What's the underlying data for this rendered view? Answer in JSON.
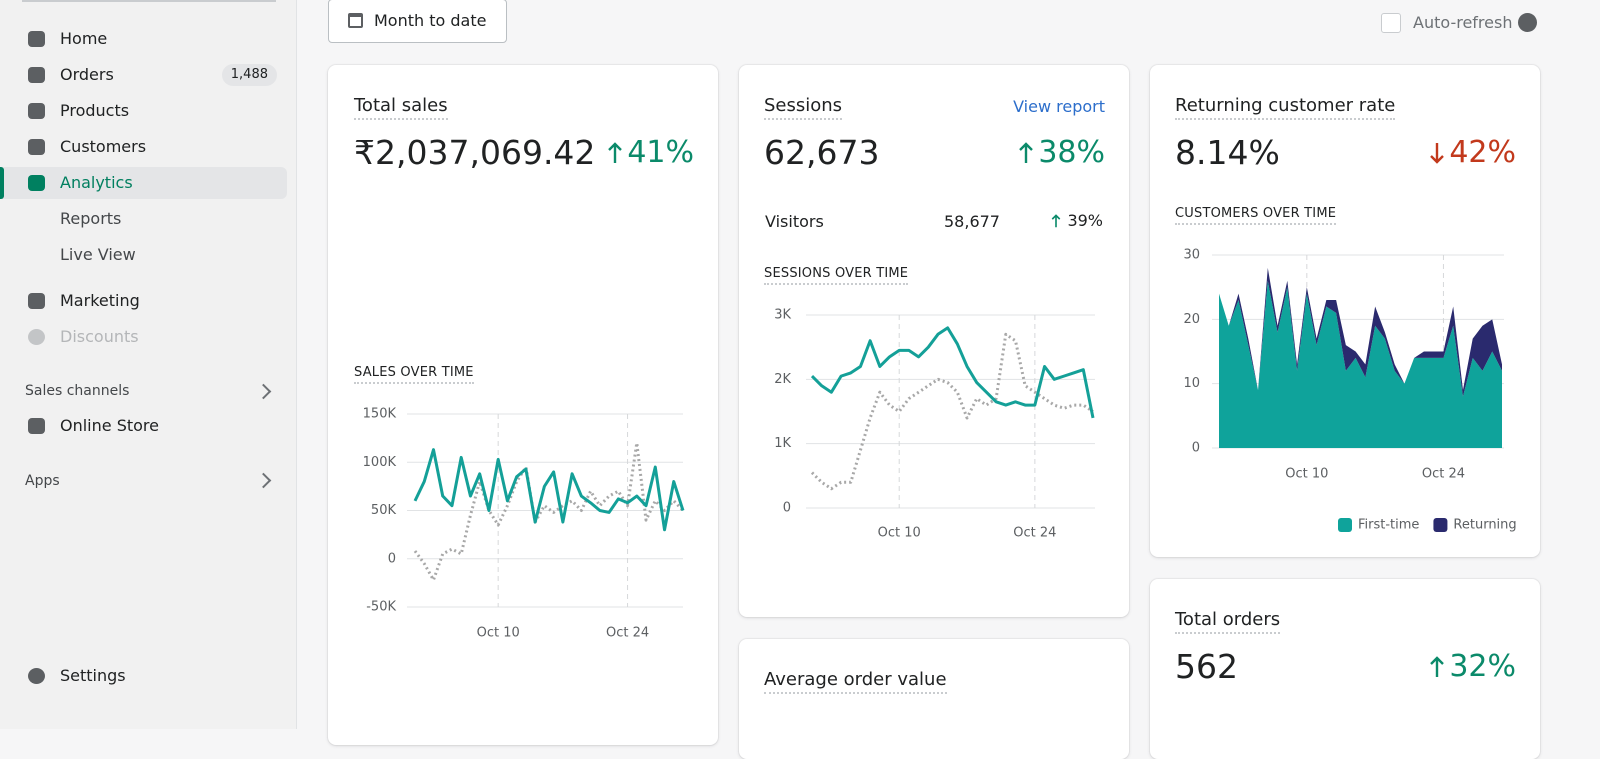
{
  "top_bar": {
    "date_range": "Month to date",
    "auto_refresh": "Auto-refresh"
  },
  "sidebar": {
    "nav": [
      {
        "label": "Home"
      },
      {
        "label": "Orders",
        "badge": "1,488"
      },
      {
        "label": "Products"
      },
      {
        "label": "Customers"
      },
      {
        "label": "Analytics",
        "active": true
      },
      {
        "label": "Reports",
        "sub": true
      },
      {
        "label": "Live View",
        "sub": true
      },
      {
        "label": "Marketing"
      },
      {
        "label": "Discounts",
        "disabled": true
      }
    ],
    "sales_channels": "Sales channels",
    "online_store": "Online Store",
    "apps": "Apps",
    "settings": "Settings"
  },
  "cards": [
    {
      "title": "Total sales",
      "value": "₹2,037,069.42",
      "change": "41%",
      "trend": "up",
      "chart": {
        "type": "line",
        "title": "SALES OVER TIME",
        "categories": [
          null,
          null,
          null,
          null,
          null,
          null,
          null,
          null,
          null,
          "Oct 10",
          null,
          null,
          null,
          null,
          null,
          null,
          null,
          null,
          null,
          null,
          null,
          null,
          null,
          "Oct 24",
          null,
          null,
          null,
          null,
          null,
          null
        ],
        "series": [
          {
            "color": "#14a098",
            "style": "solid",
            "values": [
              60000,
              80000,
              113000,
              65000,
              55000,
              105000,
              65000,
              88000,
              50000,
              103000,
              60000,
              85000,
              93000,
              38000,
              75000,
              90000,
              38000,
              88000,
              65000,
              58000,
              50000,
              48000,
              62000,
              58000,
              65000,
              55000,
              95000,
              30000,
              80000,
              50000
            ]
          },
          {
            "color": "#a8a8a8",
            "style": "dotted",
            "values": [
              8000,
              -5000,
              -22000,
              5000,
              10000,
              5000,
              45000,
              80000,
              50000,
              35000,
              55000,
              80000,
              95000,
              38000,
              55000,
              48000,
              55000,
              60000,
              50000,
              70000,
              55000,
              65000,
              70000,
              55000,
              120000,
              40000,
              60000,
              50000,
              60000,
              50000
            ]
          }
        ],
        "ylim": [
          -50000,
          150000
        ],
        "yticks": [
          {
            "value": -50000,
            "label": "-50K"
          },
          0,
          {
            "value": 50000,
            "label": "50K"
          },
          {
            "value": 100000,
            "label": "100K"
          },
          {
            "value": 150000,
            "label": "150K"
          }
        ],
        "grid": true
      }
    },
    {
      "title": "Sessions",
      "link": "View report",
      "value": "62,673",
      "change": "38%",
      "trend": "up",
      "visitors": {
        "label": "Visitors",
        "value": "58,677",
        "change": "39%"
      },
      "chart": {
        "type": "line",
        "title": "SESSIONS OVER TIME",
        "categories": [
          null,
          null,
          null,
          null,
          null,
          null,
          null,
          null,
          null,
          "Oct 10",
          null,
          null,
          null,
          null,
          null,
          null,
          null,
          null,
          null,
          null,
          null,
          null,
          null,
          "Oct 24",
          null,
          null,
          null,
          null,
          null,
          null
        ],
        "series": [
          {
            "color": "#14a098",
            "style": "solid",
            "values": [
              2050,
              1900,
              1800,
              2050,
              2100,
              2200,
              2600,
              2200,
              2350,
              2450,
              2450,
              2350,
              2500,
              2700,
              2800,
              2550,
              2200,
              1950,
              1800,
              1650,
              1600,
              1650,
              1600,
              1600,
              2200,
              2000,
              2050,
              2100,
              2150,
              1400
            ]
          },
          {
            "color": "#a8a8a8",
            "style": "dotted",
            "values": [
              550,
              400,
              300,
              400,
              400,
              900,
              1400,
              1800,
              1600,
              1500,
              1700,
              1800,
              1900,
              2000,
              1950,
              1800,
              1400,
              1700,
              1600,
              1700,
              2700,
              2600,
              1900,
              1800,
              1700,
              1600,
              1550,
              1600,
              1600,
              1500
            ]
          }
        ],
        "ylim": [
          0,
          3000
        ],
        "yticks": [
          0,
          {
            "value": 1000,
            "label": "1K"
          },
          {
            "value": 2000,
            "label": "2K"
          },
          {
            "value": 3000,
            "label": "3K"
          }
        ],
        "grid": true
      }
    },
    {
      "title": "Returning customer rate",
      "value": "8.14%",
      "change": "42%",
      "trend": "down",
      "chart": {
        "type": "stacked-area",
        "title": "CUSTOMERS OVER TIME",
        "categories": [
          null,
          null,
          null,
          null,
          null,
          null,
          null,
          null,
          null,
          "Oct 10",
          null,
          null,
          null,
          null,
          null,
          null,
          null,
          null,
          null,
          null,
          null,
          null,
          null,
          "Oct 24",
          null,
          null,
          null,
          null,
          null,
          null
        ],
        "series": [
          {
            "name": "First-time",
            "color": "#0fa39b",
            "values": [
              24,
              19,
              23,
              16,
              9,
              26,
              18,
              25,
              12,
              24,
              16,
              22,
              21,
              12,
              14,
              11,
              19,
              17,
              12,
              10,
              14,
              14,
              14,
              14,
              19,
              8,
              14,
              12,
              15,
              12
            ]
          },
          {
            "name": "Returning",
            "color": "#2a2a6e",
            "values": [
              0,
              0,
              1,
              1,
              0,
              2,
              1,
              1,
              1,
              1,
              1,
              1,
              2,
              4,
              1,
              2,
              3,
              1,
              1,
              0,
              0,
              1,
              1,
              1,
              3,
              1,
              3,
              7,
              5,
              1
            ]
          }
        ],
        "ylim": [
          0,
          30
        ],
        "yticks": [
          0,
          10,
          20,
          30
        ],
        "grid": true,
        "legend": "bottom-right"
      }
    },
    {
      "title": "Total orders",
      "value": "562",
      "change": "32%",
      "trend": "up"
    },
    {
      "title": "Average order value"
    }
  ]
}
